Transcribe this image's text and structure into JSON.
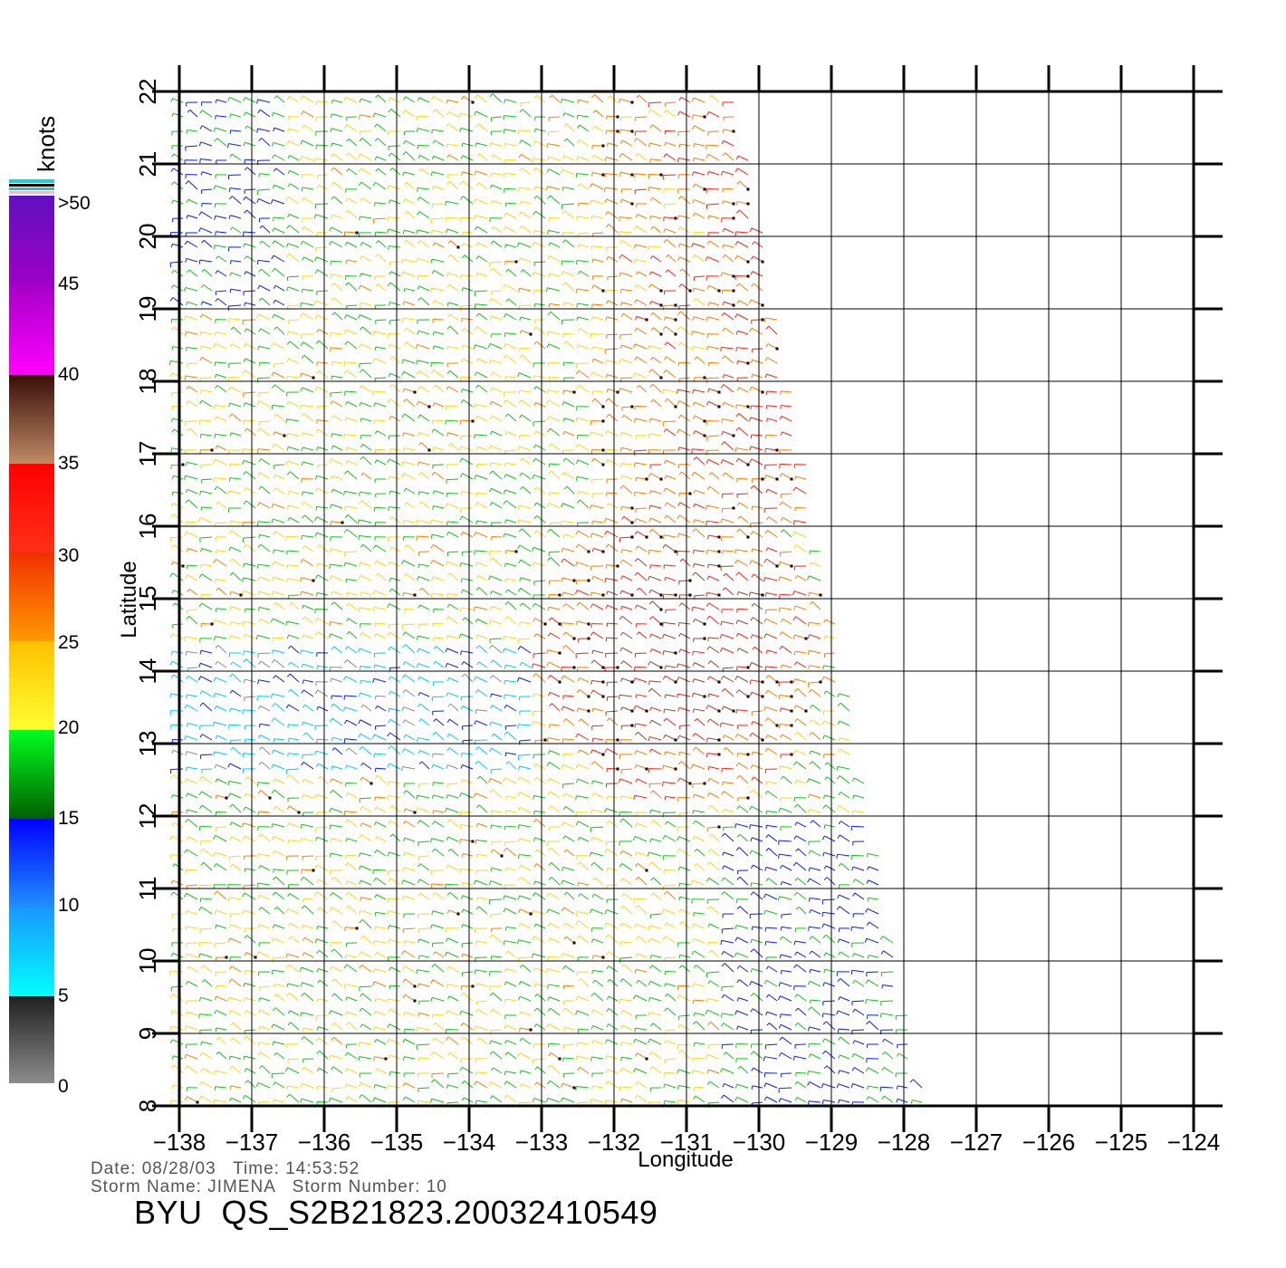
{
  "map": {
    "xlabel": "Longitude",
    "ylabel": "Latitude",
    "lon_ticks": [
      "-138",
      "-137",
      "-136",
      "-135",
      "-134",
      "-133",
      "-132",
      "-131",
      "-130",
      "-129",
      "-128",
      "-127",
      "-126",
      "-125",
      "-124"
    ],
    "lat_ticks": [
      "8",
      "9",
      "10",
      "11",
      "12",
      "13",
      "14",
      "15",
      "16",
      "17",
      "18",
      "19",
      "20",
      "21",
      "22"
    ],
    "lon_range": [
      -138,
      -124
    ],
    "lat_range": [
      8,
      22
    ],
    "swath_edge_lon_at_lat22": -130.3,
    "swath_edge_lon_at_lat8": -127.7,
    "grid": true
  },
  "colorbar": {
    "unit": "knots",
    "labels": [
      ">50",
      "45",
      "40",
      "35",
      "30",
      "25",
      "20",
      "15",
      "10",
      "5",
      "0"
    ],
    "colors": {
      "0-5": "#8a8a8a",
      "5-10": "#00c8ff",
      "10-15": "#0a1aff",
      "15-20": "#16c01a",
      "20-25": "#ffd21a",
      "25-30": "#ff7a00",
      "30-35": "#ff2010",
      "35-40": "#8b4a30",
      "40-45": "#e600e6",
      "45-50": "#7a00d0"
    }
  },
  "footer": {
    "date_line": "Date: 08/28/03   Time: 14:53:52",
    "storm_line": "Storm Name: JIMENA   Storm Number: 10",
    "file_id": "BYU  QS_S2B21823.20032410549"
  }
}
